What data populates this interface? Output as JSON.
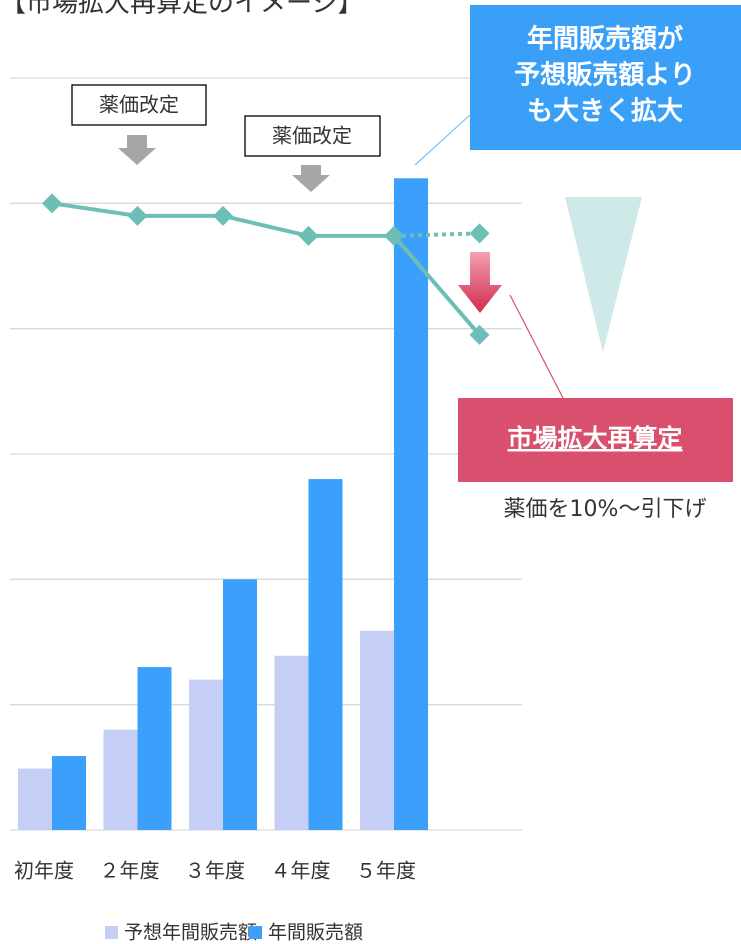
{
  "chart_data": {
    "type": "bar",
    "title": "【市場拡大再算定のイメージ】",
    "categories": [
      "初年度",
      "２年度",
      "３年度",
      "４年度",
      "５年度",
      null
    ],
    "series": [
      {
        "name": "予想年間販売額",
        "color": "#c5cff5",
        "values": [
          0.49,
          0.8,
          1.2,
          1.39,
          1.59,
          null
        ]
      },
      {
        "name": "年間販売額",
        "color": "#3aa0fb",
        "values": [
          0.59,
          1.3,
          2.0,
          2.8,
          5.2,
          null
        ]
      }
    ],
    "lines": [
      {
        "color": "#6dbfb5",
        "dashed": false,
        "values": [
          5.0,
          4.9,
          4.9,
          4.74,
          4.74,
          3.95
        ]
      },
      {
        "color": "#6dbfb5",
        "dashed": true,
        "values": [
          null,
          null,
          null,
          null,
          4.74,
          4.76
        ]
      }
    ],
    "ylim": [
      0,
      6
    ],
    "yticks": [
      0,
      1,
      2,
      3,
      4,
      5,
      6
    ],
    "grid": true,
    "annotations": {
      "revision_1": "薬価改定",
      "revision_2": "薬価改定",
      "callout": [
        "年間販売額が",
        "予想販売額より",
        "も大きく拡大"
      ],
      "repricing": "市場拡大再算定",
      "reduction": "薬価を10%～引下げ"
    }
  }
}
